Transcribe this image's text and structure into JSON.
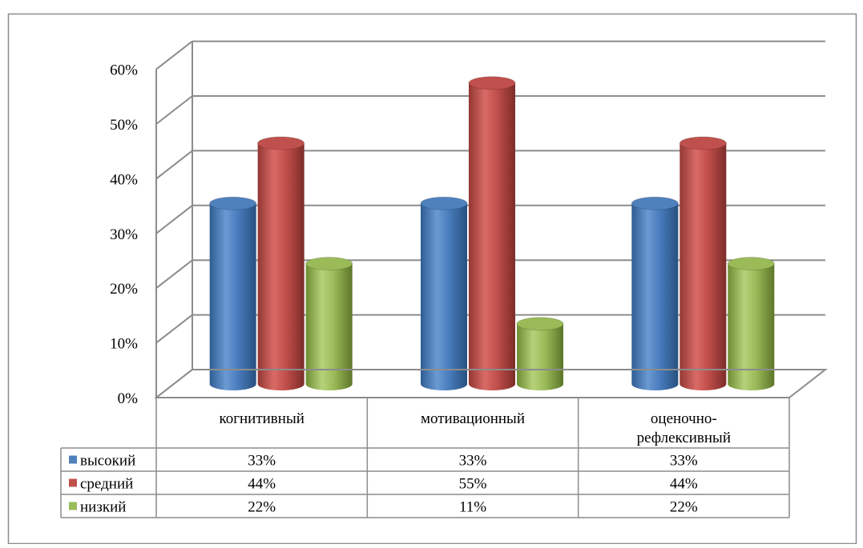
{
  "chart_data": {
    "type": "bar",
    "categories": [
      "когнитивный",
      "мотивационный",
      "оценочно-рефлексивный"
    ],
    "category_label_lines": [
      [
        "когнитивный"
      ],
      [
        "мотивационный"
      ],
      [
        "оценочно-",
        "рефлексивный"
      ]
    ],
    "series": [
      {
        "name": "высокий",
        "values": [
          33,
          33,
          33
        ],
        "labels": [
          "33%",
          "33%",
          "33%"
        ],
        "color": "#4f81bd"
      },
      {
        "name": "средний",
        "values": [
          44,
          55,
          44
        ],
        "labels": [
          "44%",
          "55%",
          "44%"
        ],
        "color": "#c0504d"
      },
      {
        "name": "низкий",
        "values": [
          22,
          11,
          22
        ],
        "labels": [
          "22%",
          "11%",
          "22%"
        ],
        "color": "#9bbb59"
      }
    ],
    "y_ticks": [
      "0%",
      "10%",
      "20%",
      "30%",
      "40%",
      "50%",
      "60%"
    ],
    "ylim": [
      0,
      60
    ],
    "grid": true,
    "legend": "data-table",
    "style": "3d-cylinder"
  }
}
